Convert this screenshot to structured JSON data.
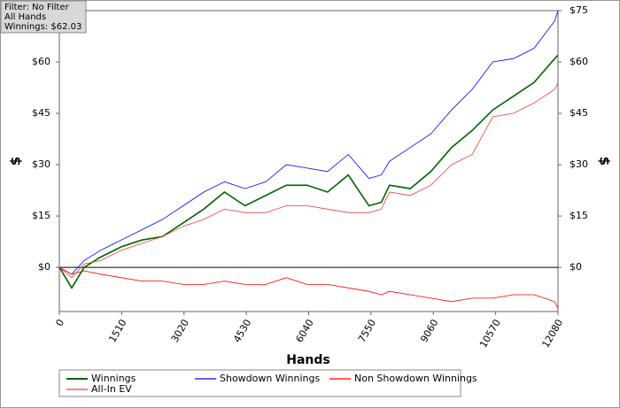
{
  "chart_data": {
    "type": "line",
    "info": [
      "Filter: No Filter",
      "All Hands",
      "Winnings: $62.03"
    ],
    "xlabel": "Hands",
    "ylabel": "$",
    "y2label": "$",
    "x": [
      0,
      300,
      600,
      1000,
      1500,
      2000,
      2500,
      3000,
      3500,
      4000,
      4500,
      5000,
      5500,
      6000,
      6500,
      7000,
      7500,
      7800,
      8000,
      8500,
      9000,
      9500,
      10000,
      10500,
      11000,
      11500,
      12000,
      12080
    ],
    "series": [
      {
        "name": "Winnings",
        "color": "#006400",
        "width": 1.6,
        "values": [
          0,
          -6,
          0,
          3,
          6,
          8,
          9,
          13,
          17,
          22,
          18,
          21,
          24,
          24,
          22,
          27,
          18,
          19,
          24,
          23,
          28,
          35,
          40,
          46,
          50,
          54,
          61,
          62
        ]
      },
      {
        "name": "Showdown Winnings",
        "color": "#0000ff",
        "width": 0.8,
        "values": [
          0,
          -2,
          2,
          5,
          8,
          11,
          14,
          18,
          22,
          25,
          23,
          25,
          30,
          29,
          28,
          33,
          26,
          27,
          31,
          35,
          39,
          46,
          52,
          60,
          61,
          64,
          72,
          75
        ]
      },
      {
        "name": "Non Showdown Winnings",
        "color": "#ff0000",
        "width": 0.8,
        "values": [
          0,
          -2,
          -1,
          -2,
          -3,
          -4,
          -4,
          -5,
          -5,
          -4,
          -5,
          -5,
          -3,
          -5,
          -5,
          -6,
          -7,
          -8,
          -7,
          -8,
          -9,
          -10,
          -9,
          -9,
          -8,
          -8,
          -10,
          -12
        ]
      },
      {
        "name": "All-In EV",
        "color": "#e84040",
        "width": 0.8,
        "values": [
          0,
          -3,
          1,
          2,
          5,
          7,
          9,
          12,
          14,
          17,
          16,
          16,
          18,
          18,
          17,
          16,
          16,
          17,
          22,
          21,
          24,
          30,
          33,
          44,
          45,
          48,
          52,
          54
        ]
      }
    ],
    "xlim": [
      0,
      12080
    ],
    "xticks": [
      0,
      1510,
      3020,
      4530,
      6040,
      7550,
      9060,
      10570,
      12080
    ],
    "ylim": [
      -12.9,
      75
    ],
    "yticks": [
      {
        "value": 0,
        "label": "$0"
      },
      {
        "value": 15,
        "label": "$15"
      },
      {
        "value": 30,
        "label": "$30"
      },
      {
        "value": 45,
        "label": "$45"
      },
      {
        "value": 60,
        "label": "$60"
      }
    ],
    "y2lim": [
      -12.9,
      75
    ],
    "y2ticks": [
      {
        "value": 0,
        "label": "$0"
      },
      {
        "value": 15,
        "label": "$15"
      },
      {
        "value": 30,
        "label": "$30"
      },
      {
        "value": 45,
        "label": "$45"
      },
      {
        "value": 60,
        "label": "$60"
      },
      {
        "value": 75,
        "label": "$75"
      }
    ],
    "grid": false
  }
}
